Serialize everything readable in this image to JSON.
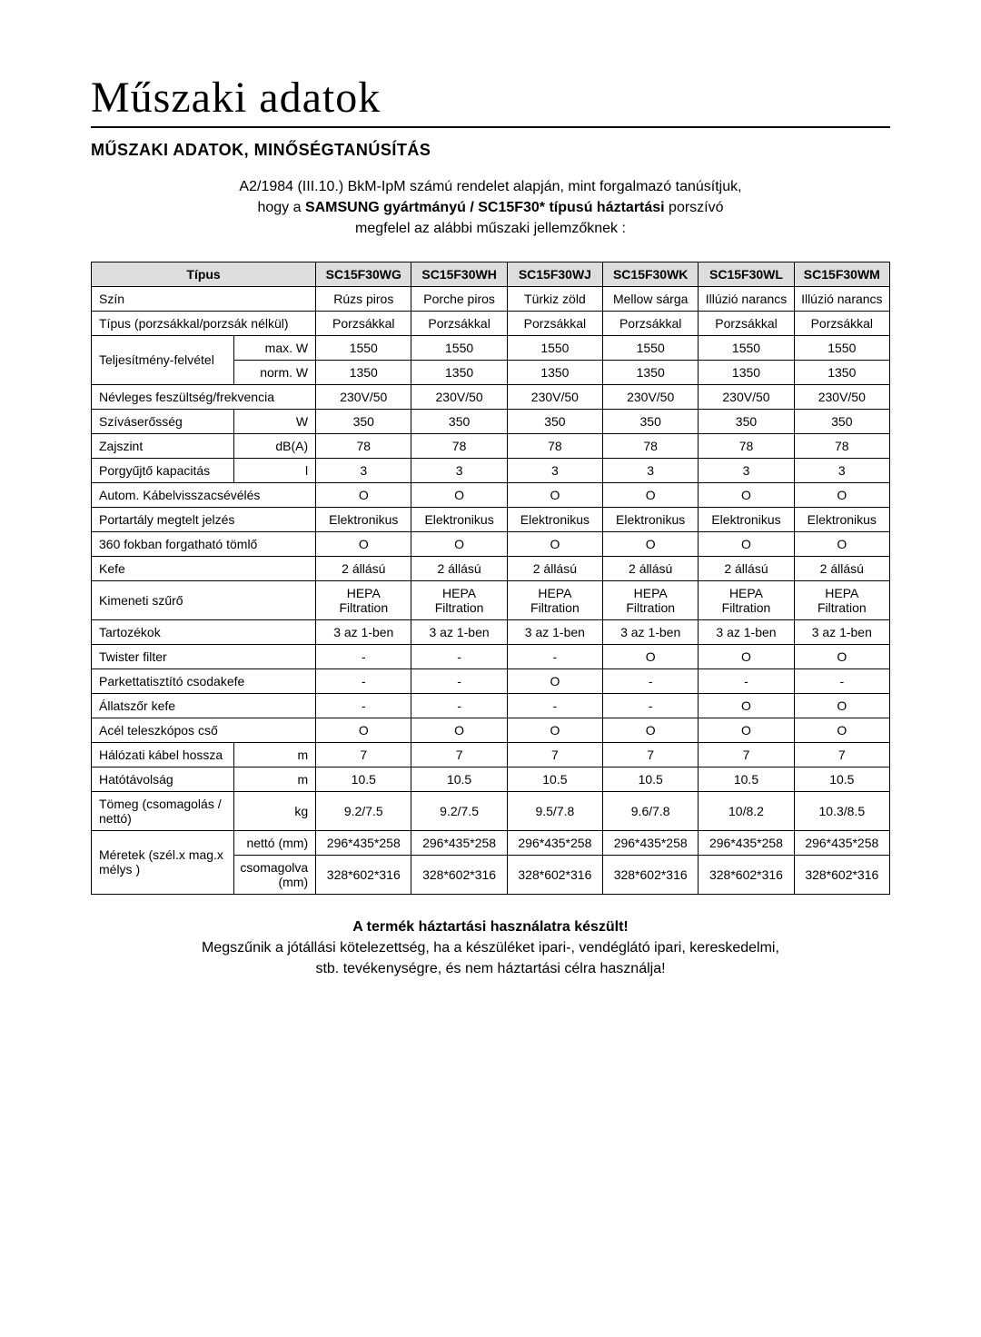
{
  "title": "Műszaki adatok",
  "subtitle": "MŰSZAKI ADATOK, MINŐSÉGTANÚSÍTÁS",
  "intro": {
    "line1": "A2/1984 (III.10.) BkM-IpM számú rendelet alapján, mint forgalmazó tanúsítjuk,",
    "line2_pre": "hogy a ",
    "line2_bold": "SAMSUNG gyártmányú / SC15F30* típusú háztartási",
    "line2_post": " porszívó",
    "line3": "megfelel az alábbi műszaki jellemzőknek :"
  },
  "columns": [
    "Típus",
    "SC15F30WG",
    "SC15F30WH",
    "SC15F30WJ",
    "SC15F30WK",
    "SC15F30WL",
    "SC15F30WM"
  ],
  "rows": [
    {
      "label": "Szín",
      "unit": "",
      "vals": [
        "Rúzs piros",
        "Porche piros",
        "Türkiz zöld",
        "Mellow sárga",
        "Illúzió narancs",
        "Illúzió narancs"
      ]
    },
    {
      "label": "Típus (porzsákkal/porzsák nélkül)",
      "unit": "",
      "vals": [
        "Porzsákkal",
        "Porzsákkal",
        "Porzsákkal",
        "Porzsákkal",
        "Porzsákkal",
        "Porzsákkal"
      ]
    }
  ],
  "power": {
    "label": "Teljesítmény-felvétel",
    "max_label": "max. W",
    "max_vals": [
      "1550",
      "1550",
      "1550",
      "1550",
      "1550",
      "1550"
    ],
    "norm_label": "norm. W",
    "norm_vals": [
      "1350",
      "1350",
      "1350",
      "1350",
      "1350",
      "1350"
    ]
  },
  "simple_rows": [
    {
      "label": "Névleges feszültség/frekvencia",
      "unit": "",
      "colspan": 2,
      "vals": [
        "230V/50",
        "230V/50",
        "230V/50",
        "230V/50",
        "230V/50",
        "230V/50"
      ]
    },
    {
      "label": "Szíváserősség",
      "unit": "W",
      "colspan": 1,
      "vals": [
        "350",
        "350",
        "350",
        "350",
        "350",
        "350"
      ]
    },
    {
      "label": "Zajszint",
      "unit": "dB(A)",
      "colspan": 1,
      "vals": [
        "78",
        "78",
        "78",
        "78",
        "78",
        "78"
      ]
    },
    {
      "label": "Porgyűjtő kapacitás",
      "unit": "l",
      "colspan": 1,
      "vals": [
        "3",
        "3",
        "3",
        "3",
        "3",
        "3"
      ]
    },
    {
      "label": "Autom. Kábelvisszacsévélés",
      "unit": "",
      "colspan": 2,
      "vals": [
        "O",
        "O",
        "O",
        "O",
        "O",
        "O"
      ]
    },
    {
      "label": "Portartály megtelt jelzés",
      "unit": "",
      "colspan": 2,
      "vals": [
        "Elektronikus",
        "Elektronikus",
        "Elektronikus",
        "Elektronikus",
        "Elektronikus",
        "Elektronikus"
      ]
    },
    {
      "label": "360 fokban forgatható tömlő",
      "unit": "",
      "colspan": 2,
      "vals": [
        "O",
        "O",
        "O",
        "O",
        "O",
        "O"
      ]
    },
    {
      "label": "Kefe",
      "unit": "",
      "colspan": 2,
      "vals": [
        "2 állású",
        "2 állású",
        "2 állású",
        "2 állású",
        "2 állású",
        "2 állású"
      ]
    },
    {
      "label": "Kimeneti szűrő",
      "unit": "",
      "colspan": 2,
      "vals": [
        "HEPA Filtration",
        "HEPA Filtration",
        "HEPA Filtration",
        "HEPA Filtration",
        "HEPA Filtration",
        "HEPA Filtration"
      ]
    },
    {
      "label": "Tartozékok",
      "unit": "",
      "colspan": 2,
      "vals": [
        "3 az 1-ben",
        "3 az 1-ben",
        "3 az 1-ben",
        "3 az 1-ben",
        "3 az 1-ben",
        "3 az 1-ben"
      ]
    },
    {
      "label": "Twister filter",
      "unit": "",
      "colspan": 2,
      "vals": [
        "-",
        "-",
        "-",
        "O",
        "O",
        "O"
      ]
    },
    {
      "label": "Parkettatisztító csodakefe",
      "unit": "",
      "colspan": 2,
      "vals": [
        "-",
        "-",
        "O",
        "-",
        "-",
        "-"
      ]
    },
    {
      "label": "Állatszőr kefe",
      "unit": "",
      "colspan": 2,
      "vals": [
        "-",
        "-",
        "-",
        "-",
        "O",
        "O"
      ]
    },
    {
      "label": "Acél teleszkópos cső",
      "unit": "",
      "colspan": 2,
      "vals": [
        "O",
        "O",
        "O",
        "O",
        "O",
        "O"
      ]
    },
    {
      "label": "Hálózati kábel hossza",
      "unit": "m",
      "colspan": 1,
      "vals": [
        "7",
        "7",
        "7",
        "7",
        "7",
        "7"
      ]
    },
    {
      "label": "Hatótávolság",
      "unit": "m",
      "colspan": 1,
      "vals": [
        "10.5",
        "10.5",
        "10.5",
        "10.5",
        "10.5",
        "10.5"
      ]
    },
    {
      "label": "Tömeg (csomagolás / nettó)",
      "unit": "kg",
      "colspan": 1,
      "vals": [
        "9.2/7.5",
        "9.2/7.5",
        "9.5/7.8",
        "9.6/7.8",
        "10/8.2",
        "10.3/8.5"
      ]
    }
  ],
  "dimensions": {
    "label": "Méretek (szél.x mag.x mélys )",
    "net_label": "nettó (mm)",
    "net_vals": [
      "296*435*258",
      "296*435*258",
      "296*435*258",
      "296*435*258",
      "296*435*258",
      "296*435*258"
    ],
    "pack_label": "csomagolva (mm)",
    "pack_vals": [
      "328*602*316",
      "328*602*316",
      "328*602*316",
      "328*602*316",
      "328*602*316",
      "328*602*316"
    ]
  },
  "footer": {
    "bold": "A termék háztartási használatra készült!",
    "line1": "Megszűnik a jótállási kötelezettség, ha a készüléket ipari-, vendéglátó ipari, kereskedelmi,",
    "line2": "stb. tevékenységre, és nem háztartási célra használja!"
  },
  "style": {
    "header_bg": "#dddddd",
    "border_color": "#000000",
    "text_color": "#000000",
    "background_color": "#ffffff",
    "title_fontsize": 48,
    "subtitle_fontsize": 18,
    "body_fontsize": 16,
    "table_fontsize": 14,
    "col_widths": {
      "label": "18%",
      "unit": "10%",
      "model": "12%"
    }
  }
}
